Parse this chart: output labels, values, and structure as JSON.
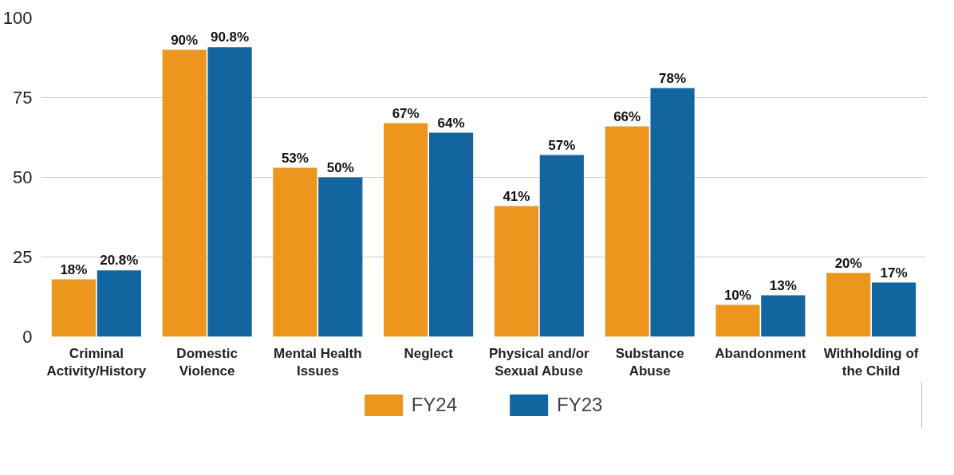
{
  "chart_data": {
    "type": "bar",
    "categories": [
      "Criminal\nActivity/History",
      "Domestic\nViolence",
      "Mental Health\nIssues",
      "Neglect",
      "Physical and/or\nSexual Abuse",
      "Substance\nAbuse",
      "Abandonment",
      "Withholding of\nthe Child"
    ],
    "series": [
      {
        "name": "FY24",
        "color": "#ec961e",
        "values": [
          18,
          90,
          53,
          67,
          41,
          66,
          10,
          20
        ],
        "value_labels": [
          "18%",
          "90%",
          "53%",
          "67%",
          "41%",
          "66%",
          "10%",
          "20%"
        ]
      },
      {
        "name": "FY23",
        "color": "#12659e",
        "values": [
          20.8,
          90.8,
          50,
          64,
          57,
          78,
          13,
          17
        ],
        "value_labels": [
          "20.8%",
          "90.8%",
          "50%",
          "64%",
          "57%",
          "78%",
          "13%",
          "17%"
        ]
      }
    ],
    "ylim": [
      0,
      100
    ],
    "yticks": [
      0,
      25,
      50,
      75,
      100
    ],
    "grid": "y",
    "legend": "bottom"
  }
}
